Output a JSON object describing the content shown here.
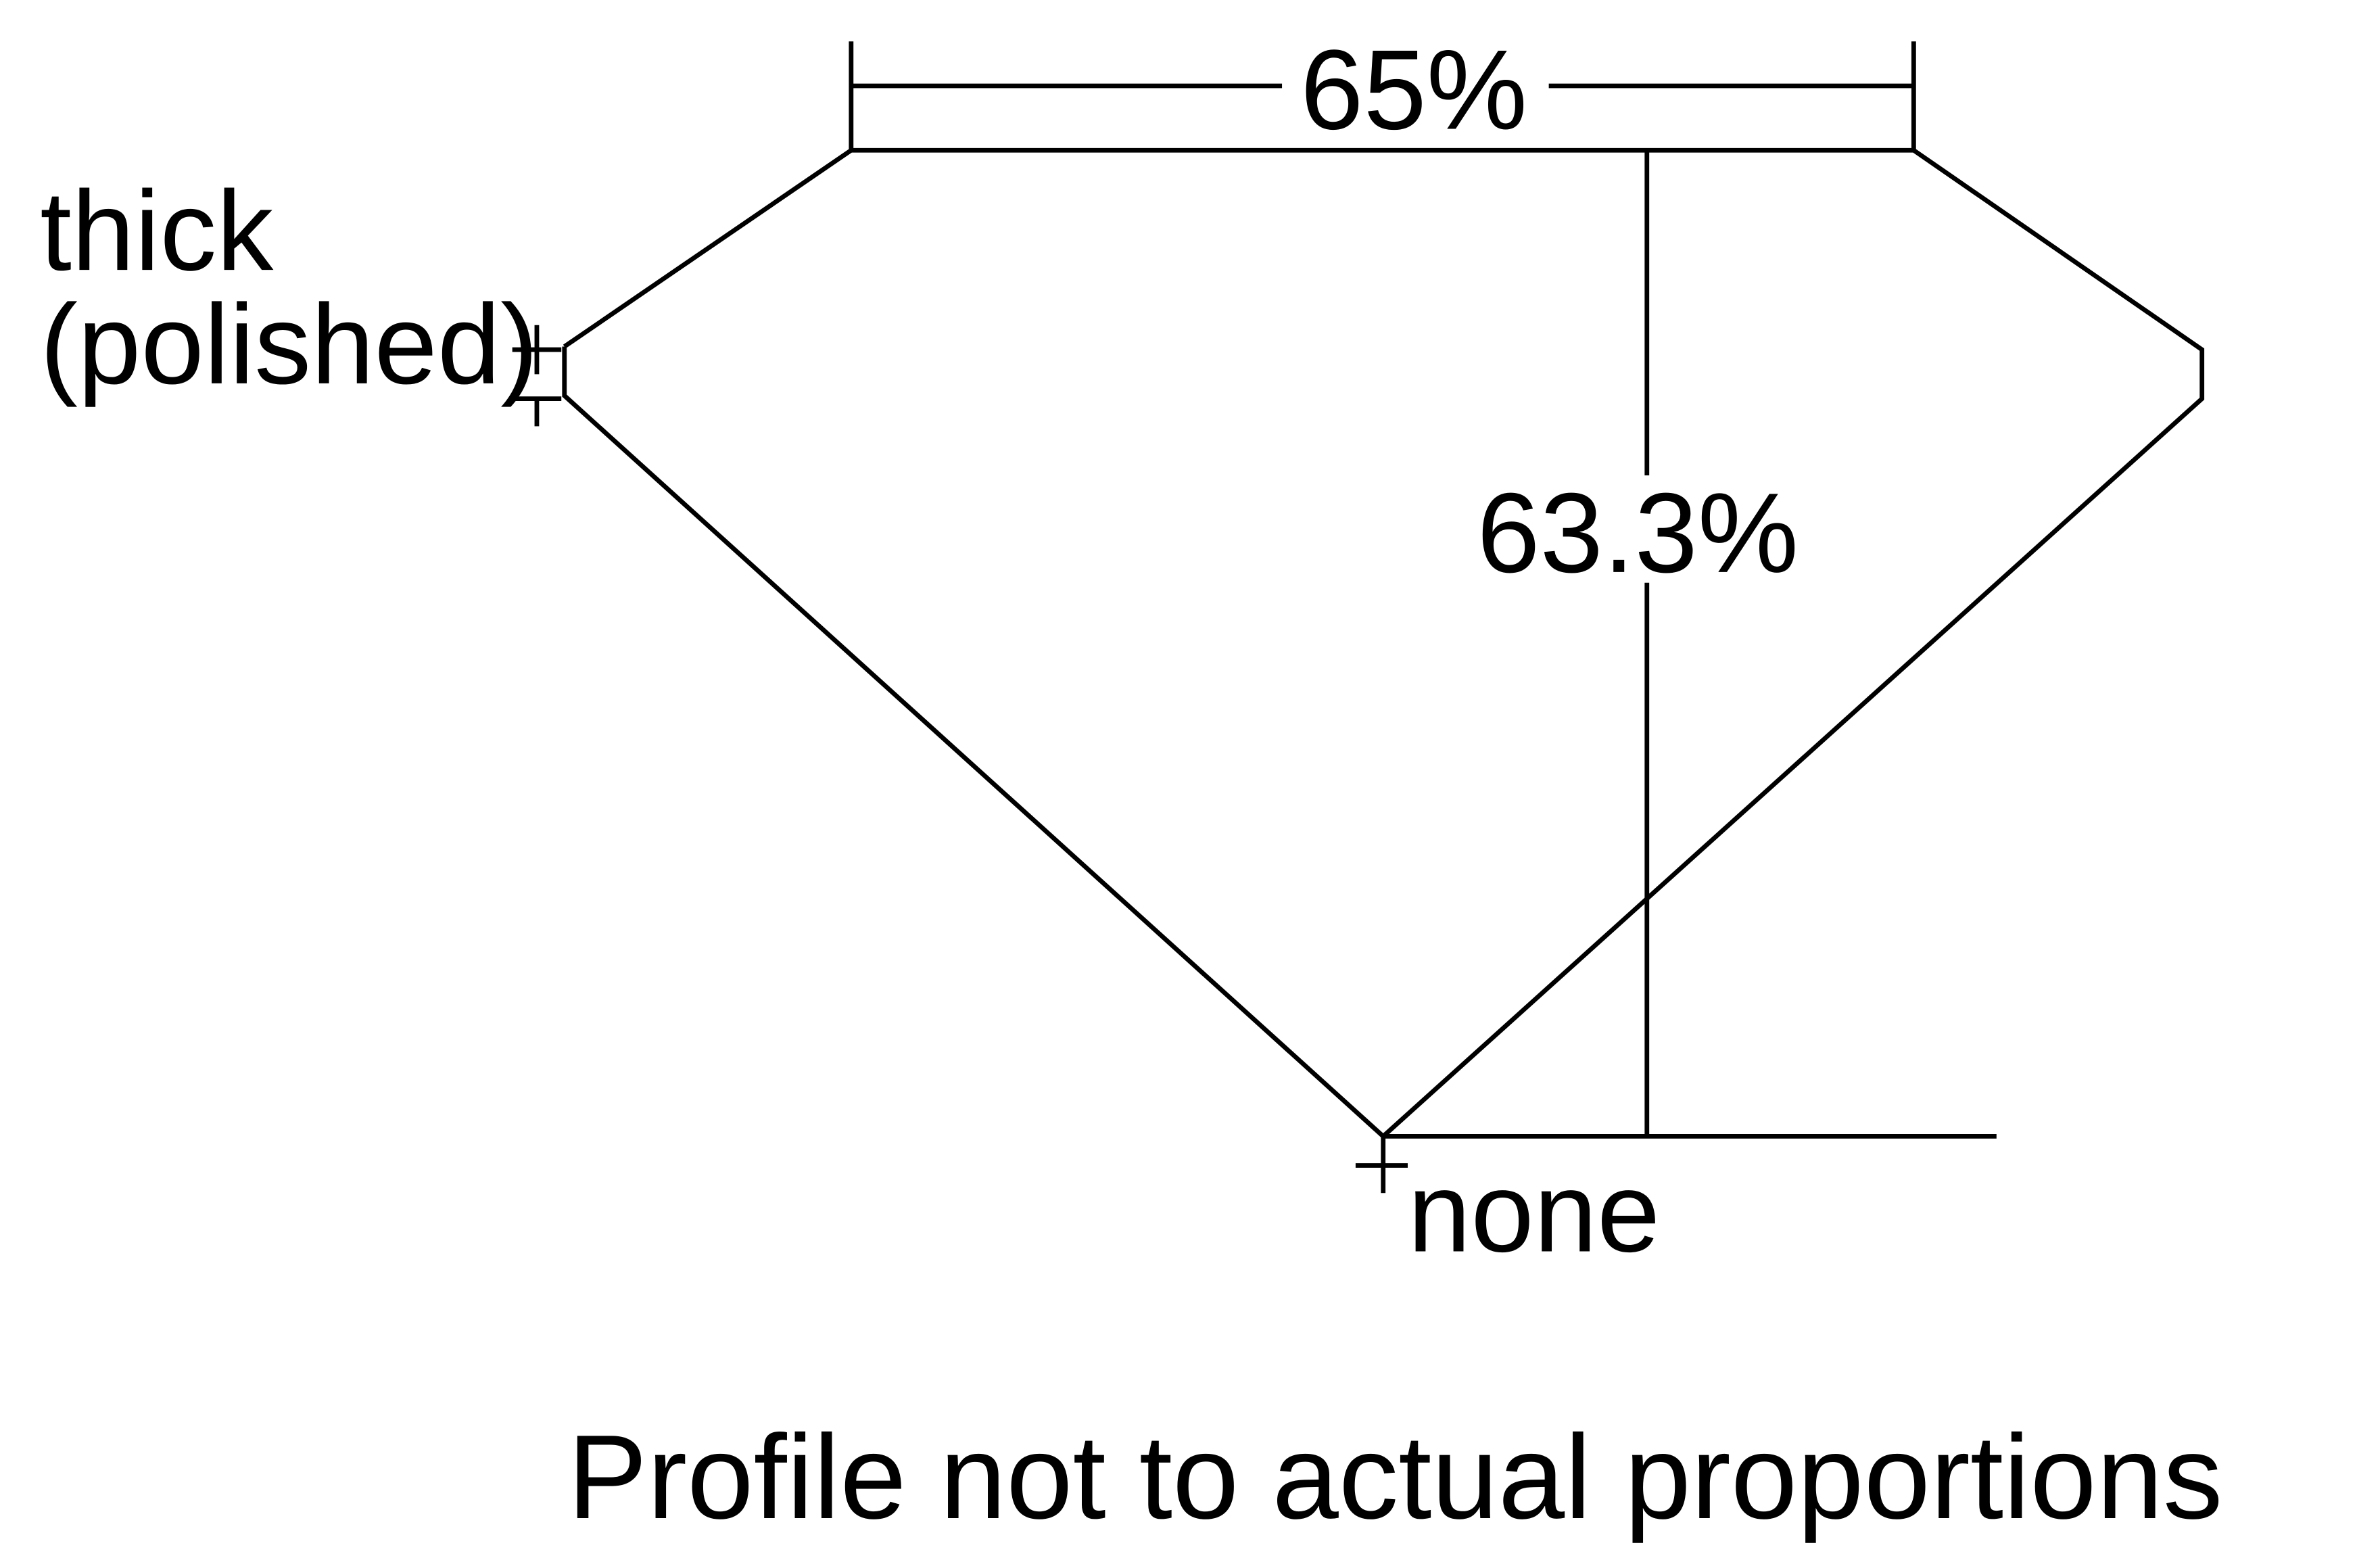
{
  "diagram": {
    "table_percent": "65%",
    "total_depth_percent": "63.3%",
    "girdle_label_line1": "thick",
    "girdle_label_line2": "(polished)",
    "culet_label": "none",
    "footnote": "Profile not to actual proportions",
    "line_color": "#000000",
    "background_color": "#ffffff"
  }
}
